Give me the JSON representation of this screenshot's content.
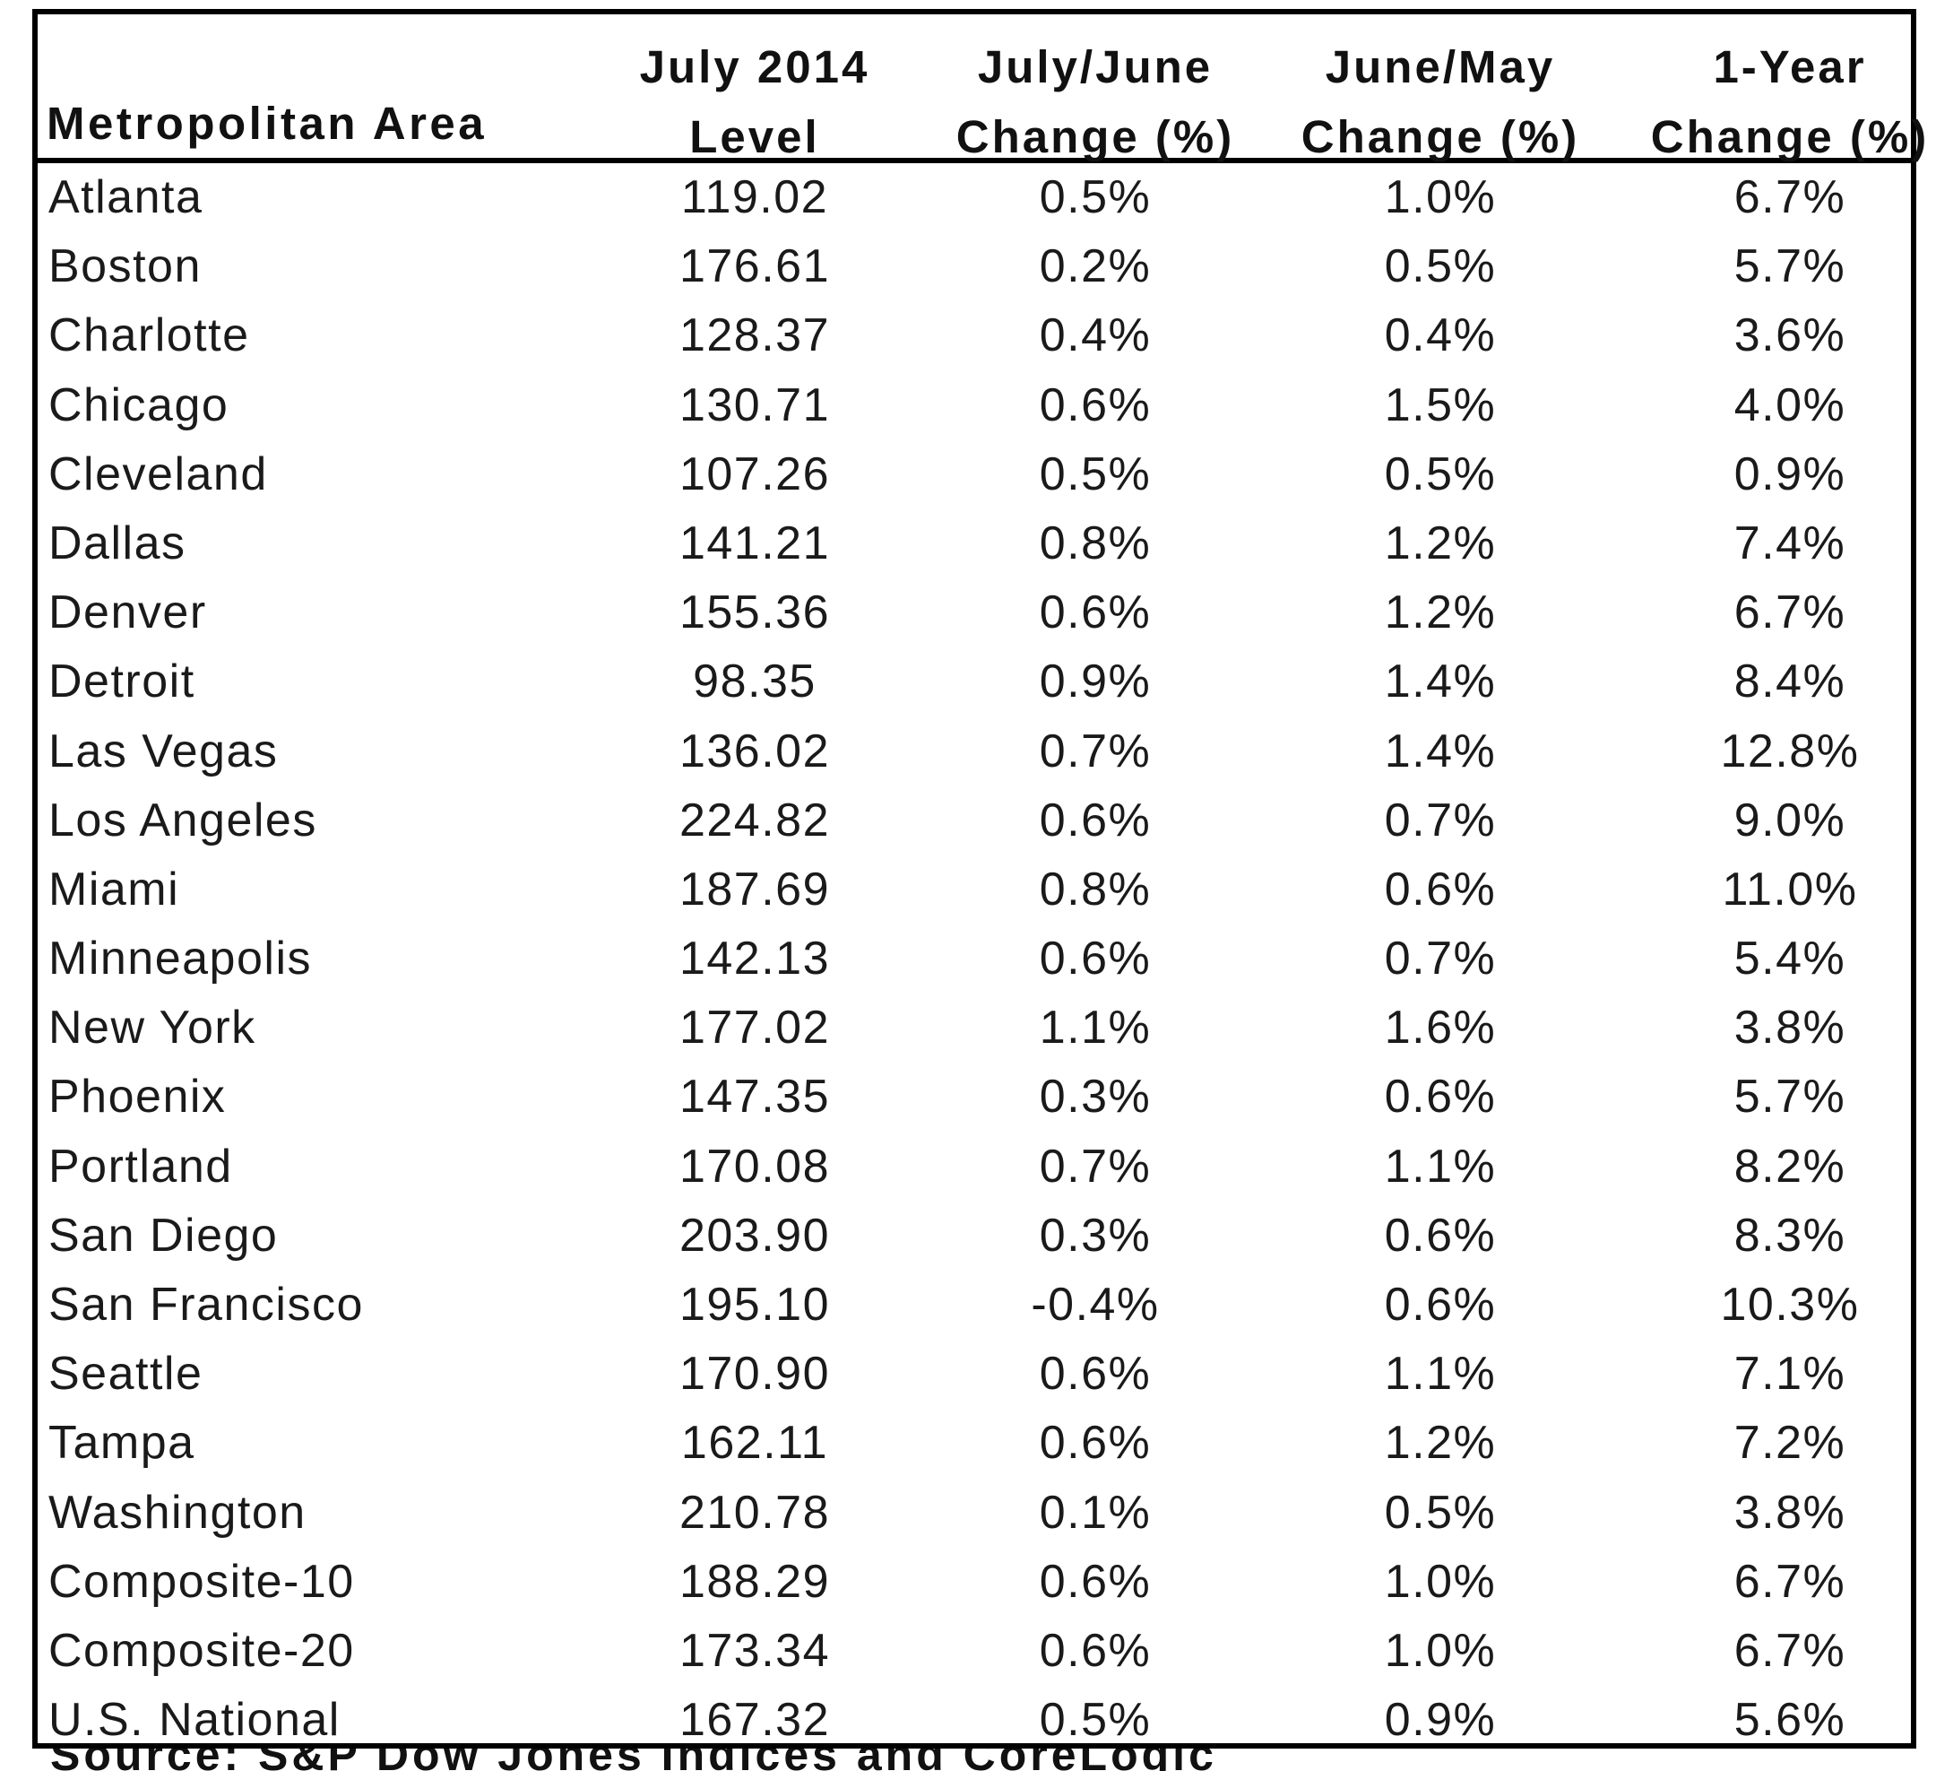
{
  "table": {
    "headers": {
      "metro": "Metropolitan Area",
      "level_line1": "July 2014",
      "level_line2": "Level",
      "jj_line1": "July/June",
      "jj_line2": "Change (%)",
      "jm_line1": "June/May",
      "jm_line2": "Change (%)",
      "yr_line1": "1-Year",
      "yr_line2": "Change (%)"
    },
    "rows": [
      {
        "name": "Atlanta",
        "level": "119.02",
        "jj": "0.5%",
        "jm": "1.0%",
        "yr": "6.7%"
      },
      {
        "name": "Boston",
        "level": "176.61",
        "jj": "0.2%",
        "jm": "0.5%",
        "yr": "5.7%"
      },
      {
        "name": "Charlotte",
        "level": "128.37",
        "jj": "0.4%",
        "jm": "0.4%",
        "yr": "3.6%"
      },
      {
        "name": "Chicago",
        "level": "130.71",
        "jj": "0.6%",
        "jm": "1.5%",
        "yr": "4.0%"
      },
      {
        "name": "Cleveland",
        "level": "107.26",
        "jj": "0.5%",
        "jm": "0.5%",
        "yr": "0.9%"
      },
      {
        "name": "Dallas",
        "level": "141.21",
        "jj": "0.8%",
        "jm": "1.2%",
        "yr": "7.4%"
      },
      {
        "name": "Denver",
        "level": "155.36",
        "jj": "0.6%",
        "jm": "1.2%",
        "yr": "6.7%"
      },
      {
        "name": "Detroit",
        "level": "98.35",
        "jj": "0.9%",
        "jm": "1.4%",
        "yr": "8.4%"
      },
      {
        "name": "Las Vegas",
        "level": "136.02",
        "jj": "0.7%",
        "jm": "1.4%",
        "yr": "12.8%"
      },
      {
        "name": "Los Angeles",
        "level": "224.82",
        "jj": "0.6%",
        "jm": "0.7%",
        "yr": "9.0%"
      },
      {
        "name": "Miami",
        "level": "187.69",
        "jj": "0.8%",
        "jm": "0.6%",
        "yr": "11.0%"
      },
      {
        "name": "Minneapolis",
        "level": "142.13",
        "jj": "0.6%",
        "jm": "0.7%",
        "yr": "5.4%"
      },
      {
        "name": "New York",
        "level": "177.02",
        "jj": "1.1%",
        "jm": "1.6%",
        "yr": "3.8%"
      },
      {
        "name": "Phoenix",
        "level": "147.35",
        "jj": "0.3%",
        "jm": "0.6%",
        "yr": "5.7%"
      },
      {
        "name": "Portland",
        "level": "170.08",
        "jj": "0.7%",
        "jm": "1.1%",
        "yr": "8.2%"
      },
      {
        "name": "San Diego",
        "level": "203.90",
        "jj": "0.3%",
        "jm": "0.6%",
        "yr": "8.3%"
      },
      {
        "name": "San Francisco",
        "level": "195.10",
        "jj": "-0.4%",
        "jm": "0.6%",
        "yr": "10.3%"
      },
      {
        "name": "Seattle",
        "level": "170.90",
        "jj": "0.6%",
        "jm": "1.1%",
        "yr": "7.1%"
      },
      {
        "name": "Tampa",
        "level": "162.11",
        "jj": "0.6%",
        "jm": "1.2%",
        "yr": "7.2%"
      },
      {
        "name": "Washington",
        "level": "210.78",
        "jj": "0.1%",
        "jm": "0.5%",
        "yr": "3.8%"
      },
      {
        "name": "Composite-10",
        "level": "188.29",
        "jj": "0.6%",
        "jm": "1.0%",
        "yr": "6.7%"
      },
      {
        "name": "Composite-20",
        "level": "173.34",
        "jj": "0.6%",
        "jm": "1.0%",
        "yr": "6.7%"
      },
      {
        "name": "U.S. National",
        "level": "167.32",
        "jj": "0.5%",
        "jm": "0.9%",
        "yr": "5.6%"
      }
    ]
  },
  "footer": {
    "source_text": "Source: S&P Dow Jones Indices and CoreLogic"
  }
}
